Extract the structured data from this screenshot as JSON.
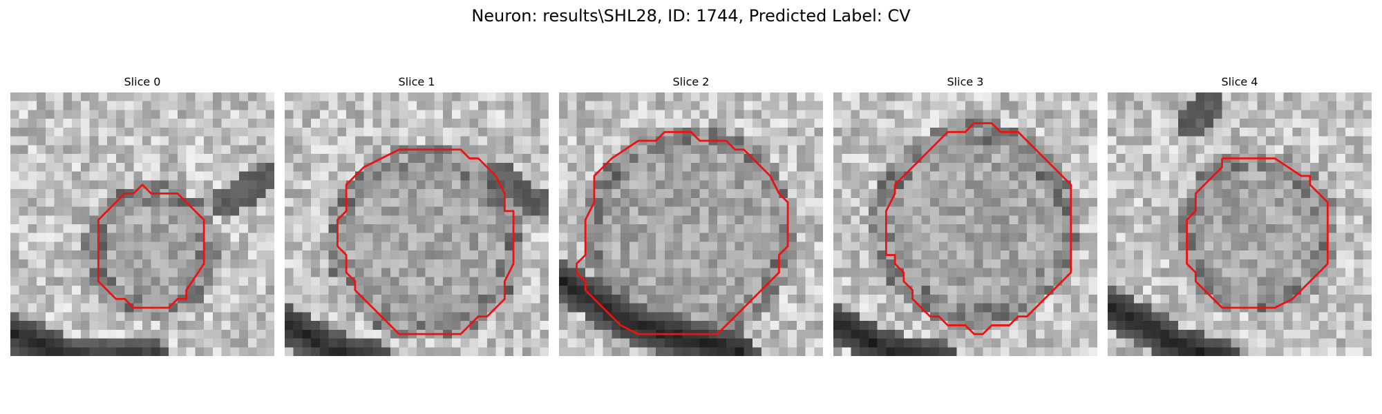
{
  "figure": {
    "title": "Neuron: results\\SHL28, ID: 1744, Predicted Label: CV"
  },
  "slices": [
    {
      "label": "Slice 0"
    },
    {
      "label": "Slice 1"
    },
    {
      "label": "Slice 2"
    },
    {
      "label": "Slice 3"
    },
    {
      "label": "Slice 4"
    }
  ],
  "colors": {
    "contour": "#ee1111",
    "background": "#ffffff"
  },
  "icons": {
    "image": "grayscale-microscopy-tile"
  }
}
